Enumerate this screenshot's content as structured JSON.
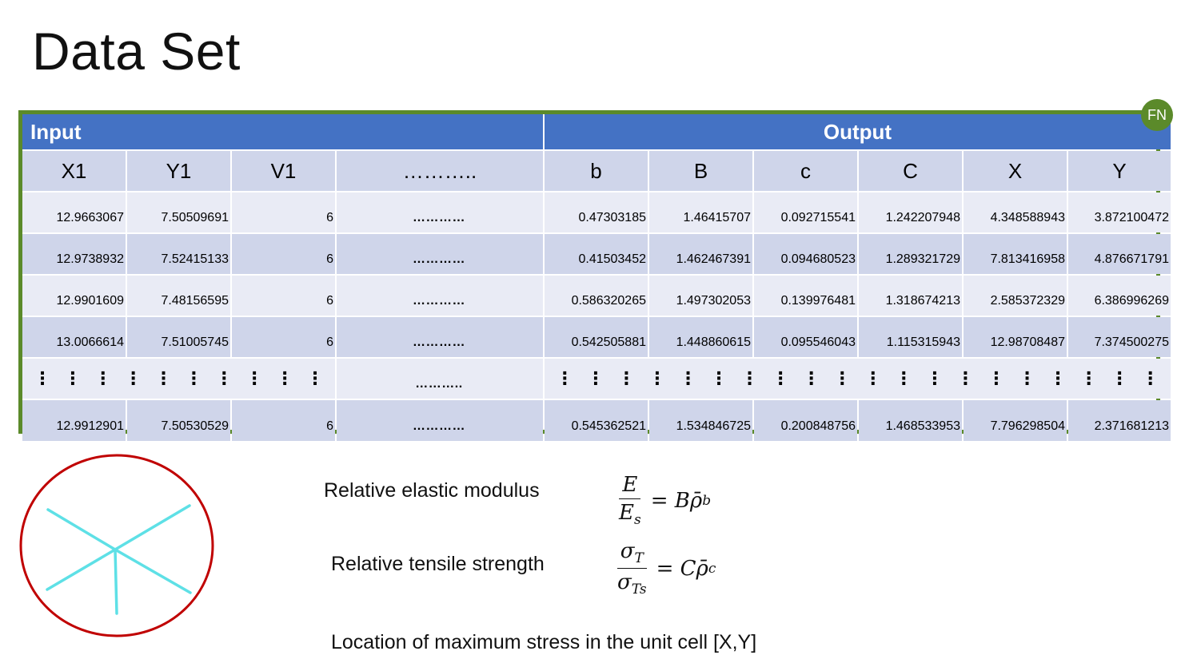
{
  "slide": {
    "title": "Data Set",
    "badge": "FN"
  },
  "table": {
    "group_headers": {
      "input": "Input",
      "output": "Output"
    },
    "columns": [
      "X1",
      "Y1",
      "V1",
      "………..",
      "b",
      "B",
      "c",
      "C",
      "X",
      "Y"
    ],
    "rows": [
      [
        "12.9663067",
        "7.50509691",
        "6",
        "…………",
        "0.47303185",
        "1.46415707",
        "0.092715541",
        "1.242207948",
        "4.348588943",
        "3.872100472"
      ],
      [
        "12.9738932",
        "7.52415133",
        "6",
        "…………",
        "0.41503452",
        "1.462467391",
        "0.094680523",
        "1.289321729",
        "7.813416958",
        "4.876671791"
      ],
      [
        "12.9901609",
        "7.48156595",
        "6",
        "…………",
        "0.586320265",
        "1.497302053",
        "0.139976481",
        "1.318674213",
        "2.585372329",
        "6.386996269"
      ],
      [
        "13.0066614",
        "7.51005745",
        "6",
        "…………",
        "0.542505881",
        "1.448860615",
        "0.095546043",
        "1.115315943",
        "12.98708487",
        "7.374500275"
      ]
    ],
    "ellipsis_row": {
      "vertical_marks": "⋮",
      "middle": "………..",
      "input_mark_count": 10,
      "output_mark_count": 20
    },
    "last_row": [
      "12.9912901",
      "7.50530529",
      "6",
      "…………",
      "0.545362521",
      "1.534846725",
      "0.200848756",
      "1.468533953",
      "7.796298504",
      "2.371681213"
    ]
  },
  "properties": {
    "elastic": {
      "label": "Relative elastic modulus",
      "numerator": "E",
      "denominator": "E",
      "denominator_sub": "s",
      "equals": "=",
      "coef": "B",
      "rho": "ρ̄",
      "exp": "b"
    },
    "tensile": {
      "label": "Relative tensile strength",
      "numerator": "σ",
      "numerator_sub": "T",
      "denominator": "σ",
      "denominator_sub": "Ts",
      "equals": "=",
      "coef": "C",
      "rho": "ρ̄",
      "exp": "c"
    },
    "max_stress_label": "Location of maximum stress in the unit cell [X,Y]"
  },
  "colors": {
    "header_blue": "#4472c4",
    "row_dark": "#cfd5ea",
    "row_light": "#e9ebf5",
    "frame_green": "#5b8a2a",
    "circle_red": "#c00000",
    "strut_cyan": "#5ee0e6"
  }
}
